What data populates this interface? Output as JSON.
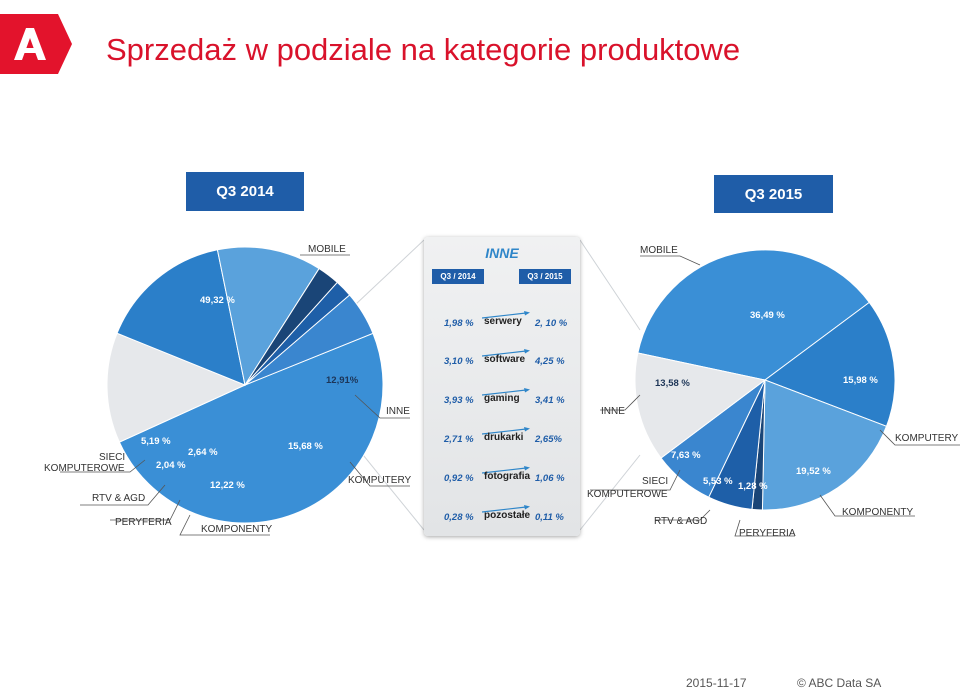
{
  "title": "Sprzedaż w podziale na kategorie produktowe",
  "logo": {
    "icon": "abc-data-logo",
    "color": "#e3132c"
  },
  "footer": {
    "date": "2015-11-17",
    "copyright": "© ABC Data SA"
  },
  "colors": {
    "mobile": "#3a8fd6",
    "inne": "#e6e8eb",
    "komputery": "#2b7fc9",
    "komponenty": "#5aa2dc",
    "peryferia": "#1a4577",
    "rtv_agd": "#1e5fa8",
    "sieci": "#3a86cf",
    "header": "#1f5da8",
    "title": "#d9122b"
  },
  "chart_data": [
    {
      "type": "pie",
      "title": "Q3 2014",
      "slices": [
        {
          "name": "MOBILE",
          "value": 49.32,
          "label": "49,32 %"
        },
        {
          "name": "INNE",
          "value": 12.91,
          "label": "12,91%"
        },
        {
          "name": "KOMPUTERY",
          "value": 15.68,
          "label": "15,68 %"
        },
        {
          "name": "KOMPONENTY",
          "value": 12.22,
          "label": "12,22 %"
        },
        {
          "name": "PERYFERIA",
          "value": 2.64,
          "label": "2,64 %"
        },
        {
          "name": "RTV & AGD",
          "value": 2.04,
          "label": "2,04 %"
        },
        {
          "name": "SIECI KOMPUTEROWE",
          "value": 5.19,
          "label": "5,19 %"
        }
      ]
    },
    {
      "type": "pie",
      "title": "Q3 2015",
      "slices": [
        {
          "name": "MOBILE",
          "value": 36.49,
          "label": "36,49 %"
        },
        {
          "name": "KOMPUTERY",
          "value": 15.98,
          "label": "15,98 %"
        },
        {
          "name": "KOMPONENTY",
          "value": 19.52,
          "label": "19,52 %"
        },
        {
          "name": "PERYFERIA",
          "value": 1.28,
          "label": "1,28 %"
        },
        {
          "name": "RTV & AGD",
          "value": 5.53,
          "label": "5,53 %"
        },
        {
          "name": "SIECI KOMPUTEROWE",
          "value": 7.63,
          "label": "7,63 %"
        },
        {
          "name": "INNE",
          "value": 13.58,
          "label": "13,58 %"
        }
      ]
    },
    {
      "type": "table",
      "title": "INNE",
      "columns": [
        "Q3 / 2014",
        "Q3 / 2015"
      ],
      "rows": [
        {
          "category": "serwery",
          "q3_2014": "1,98 %",
          "q3_2015": "2, 10 %"
        },
        {
          "category": "software",
          "q3_2014": "3,10 %",
          "q3_2015": "4,25 %"
        },
        {
          "category": "gaming",
          "q3_2014": "3,93 %",
          "q3_2015": "3,41 %"
        },
        {
          "category": "drukarki",
          "q3_2014": "2,71 %",
          "q3_2015": "2,65%"
        },
        {
          "category": "fotografia",
          "q3_2014": "0,92 %",
          "q3_2015": "1,06 %"
        },
        {
          "category": "pozostałe",
          "q3_2014": "0,28 %",
          "q3_2015": "0,11 %"
        }
      ]
    }
  ],
  "labels14": {
    "mobile": "MOBILE",
    "inne": "INNE",
    "komputery": "KOMPUTERY",
    "komponenty": "KOMPONENTY",
    "peryferia": "PERYFERIA",
    "rtv": "RTV & AGD",
    "sieci1": "SIECI",
    "sieci2": "KOMPUTEROWE"
  },
  "labels15": {
    "mobile": "MOBILE",
    "inne": "INNE",
    "komputery": "KOMPUTERY",
    "komponenty": "KOMPONENTY",
    "peryferia": "PERYFERIA",
    "rtv": "RTV & AGD",
    "sieci1": "SIECI",
    "sieci2": "KOMPUTEROWE"
  }
}
